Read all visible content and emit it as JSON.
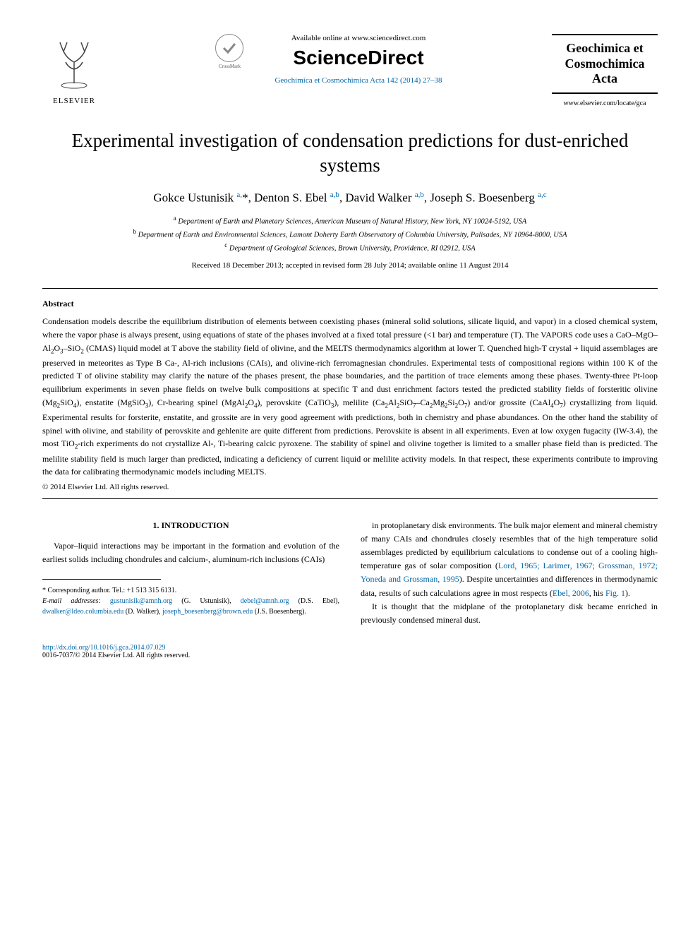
{
  "header": {
    "elsevier_label": "ELSEVIER",
    "crossmark_label": "CrossMark",
    "available_online": "Available online at www.sciencedirect.com",
    "sciencedirect": "ScienceDirect",
    "journal_ref": "Geochimica et Cosmochimica Acta 142 (2014) 27–38",
    "journal_name": "Geochimica et Cosmochimica Acta",
    "journal_url": "www.elsevier.com/locate/gca"
  },
  "title": "Experimental investigation of condensation predictions for dust-enriched systems",
  "authors_html": "Gokce Ustunisik <sup>a,</sup><span class='star'>*</span>, Denton S. Ebel <sup>a,b</sup>, David Walker <sup>a,b</sup>, Joseph S. Boesenberg <sup>a,c</sup>",
  "affiliations": {
    "a": "Department of Earth and Planetary Sciences, American Museum of Natural History, New York, NY 10024-5192, USA",
    "b": "Department of Earth and Environmental Sciences, Lamont Doherty Earth Observatory of Columbia University, Palisades, NY 10964-8000, USA",
    "c": "Department of Geological Sciences, Brown University, Providence, RI 02912, USA"
  },
  "dates": "Received 18 December 2013; accepted in revised form 28 July 2014; available online 11 August 2014",
  "abstract_heading": "Abstract",
  "abstract_text": "Condensation models describe the equilibrium distribution of elements between coexisting phases (mineral solid solutions, silicate liquid, and vapor) in a closed chemical system, where the vapor phase is always present, using equations of state of the phases involved at a fixed total pressure (<1 bar) and temperature (T). The VAPORS code uses a CaO–MgO–Al₂O₃–SiO₂ (CMAS) liquid model at T above the stability field of olivine, and the MELTS thermodynamics algorithm at lower T. Quenched high-T crystal + liquid assemblages are preserved in meteorites as Type B Ca-, Al-rich inclusions (CAIs), and olivine-rich ferromagnesian chondrules. Experimental tests of compositional regions within 100 K of the predicted T of olivine stability may clarify the nature of the phases present, the phase boundaries, and the partition of trace elements among these phases. Twenty-three Pt-loop equilibrium experiments in seven phase fields on twelve bulk compositions at specific T and dust enrichment factors tested the predicted stability fields of forsteritic olivine (Mg₂SiO₄), enstatite (MgSiO₃), Cr-bearing spinel (MgAl₂O₄), perovskite (CaTiO₃), melilite (Ca₂Al₂SiO₇–Ca₂Mg₂Si₂O₇) and/or grossite (CaAl₄O₇) crystallizing from liquid. Experimental results for forsterite, enstatite, and grossite are in very good agreement with predictions, both in chemistry and phase abundances. On the other hand the stability of spinel with olivine, and stability of perovskite and gehlenite are quite different from predictions. Perovskite is absent in all experiments. Even at low oxygen fugacity (IW-3.4), the most TiO₂-rich experiments do not crystallize Al-, Ti-bearing calcic pyroxene. The stability of spinel and olivine together is limited to a smaller phase field than is predicted. The melilite stability field is much larger than predicted, indicating a deficiency of current liquid or melilite activity models. In that respect, these experiments contribute to improving the data for calibrating thermodynamic models including MELTS.",
  "copyright": "© 2014 Elsevier Ltd. All rights reserved.",
  "intro": {
    "heading": "1. INTRODUCTION",
    "left_para": "Vapor–liquid interactions may be important in the formation and evolution of the earliest solids including chondrules and calcium-, aluminum-rich inclusions (CAIs)",
    "right_para1_pre": "in protoplanetary disk environments. The bulk major element and mineral chemistry of many CAIs and chondrules closely resembles that of the high temperature solid assemblages predicted by equilibrium calculations to condense out of a cooling high-temperature gas of solar composition (",
    "right_refs1": "Lord, 1965; Larimer, 1967; Grossman, 1972; Yoneda and Grossman, 1995",
    "right_para1_mid": "). Despite uncertainties and differences in thermodynamic data, results of such calculations agree in most respects (",
    "right_refs2": "Ebel, 2006",
    "right_para1_post": ", his ",
    "right_fig": "Fig. 1",
    "right_para1_end": ").",
    "right_para2": "It is thought that the midplane of the protoplanetary disk became enriched in previously condensed mineral dust."
  },
  "footnotes": {
    "corresponding": "* Corresponding author. Tel.: +1 513 315 6131.",
    "email_label": "E-mail addresses:",
    "emails": [
      {
        "addr": "gustunisik@amnh.org",
        "name": "(G. Ustunisik)"
      },
      {
        "addr": "debel@amnh.org",
        "name": "(D.S. Ebel)"
      },
      {
        "addr": "dwalker@ldeo.columbia.edu",
        "name": "(D. Walker)"
      },
      {
        "addr": "joseph_boesenberg@brown.edu",
        "name": "(J.S. Boesenberg)"
      }
    ]
  },
  "bottom": {
    "doi": "http://dx.doi.org/10.1016/j.gca.2014.07.029",
    "issn_line": "0016-7037/© 2014 Elsevier Ltd. All rights reserved."
  },
  "colors": {
    "link": "#0066aa",
    "text": "#000000",
    "background": "#ffffff"
  }
}
